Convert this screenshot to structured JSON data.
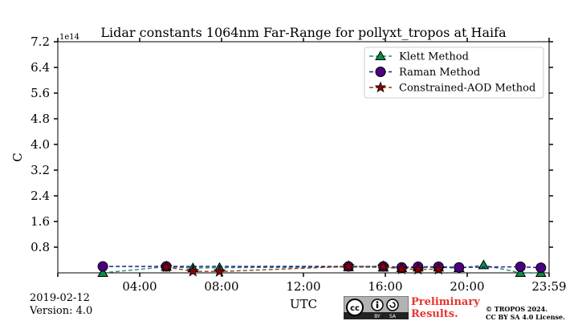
{
  "chart_data": {
    "type": "scatter",
    "title": "Lidar constants 1064nm Far-Range for pollyxt_tropos at Haifa",
    "xlabel": "UTC",
    "ylabel": "C",
    "y_multiplier_label": "1e14",
    "xlim_hours": [
      0,
      24
    ],
    "ylim": [
      0,
      7.2
    ],
    "y_ticks": [
      0.8,
      1.6,
      2.4,
      3.2,
      4.0,
      4.8,
      5.6,
      6.4,
      7.2
    ],
    "y_tick_labels": [
      "0.8",
      "1.6",
      "2.4",
      "3.2",
      "4.0",
      "4.8",
      "5.6",
      "6.4",
      "7.2"
    ],
    "x_ticks_hours": [
      4,
      8,
      12,
      16,
      20,
      24
    ],
    "x_tick_labels": [
      "04:00",
      "08:00",
      "12:00",
      "16:00",
      "20:00",
      "23:59"
    ],
    "legend_position": "top-right",
    "series": [
      {
        "name": "Klett Method",
        "marker": "triangle",
        "color": "#0a8a4a",
        "line_color": "#2e8b6e",
        "x": [
          2.2,
          5.3,
          6.6,
          7.9,
          14.2,
          15.9,
          16.8,
          17.6,
          18.6,
          19.6,
          20.8,
          22.6,
          23.6
        ],
        "y": [
          0.0,
          0.19,
          0.15,
          0.16,
          0.18,
          0.17,
          0.15,
          0.17,
          0.17,
          0.15,
          0.24,
          0.0,
          0.0
        ]
      },
      {
        "name": "Raman Method",
        "marker": "circle",
        "color": "#4b0082",
        "line_color": "#1a1a8c",
        "x": [
          2.2,
          5.3,
          14.2,
          15.9,
          16.8,
          17.6,
          18.6,
          19.6,
          22.6,
          23.6
        ],
        "y": [
          0.2,
          0.2,
          0.2,
          0.2,
          0.17,
          0.19,
          0.19,
          0.17,
          0.19,
          0.16
        ]
      },
      {
        "name": "Constrained-AOD Method",
        "marker": "star",
        "color": "#8b0000",
        "line_color": "#8b4513",
        "x": [
          5.3,
          6.6,
          7.9,
          14.2,
          15.9,
          16.8,
          17.6,
          18.6
        ],
        "y": [
          0.18,
          0.05,
          0.04,
          0.2,
          0.19,
          0.12,
          0.11,
          0.11
        ]
      }
    ]
  },
  "footer": {
    "date": "2019-02-12",
    "version": "Version: 4.0",
    "preliminary_line1": "Preliminary",
    "preliminary_line2": "Results.",
    "copyright_line1": "© TROPOS 2024.",
    "copyright_line2": "CC BY SA 4.0 License.",
    "badge_by": "BY",
    "badge_sa": "SA"
  }
}
